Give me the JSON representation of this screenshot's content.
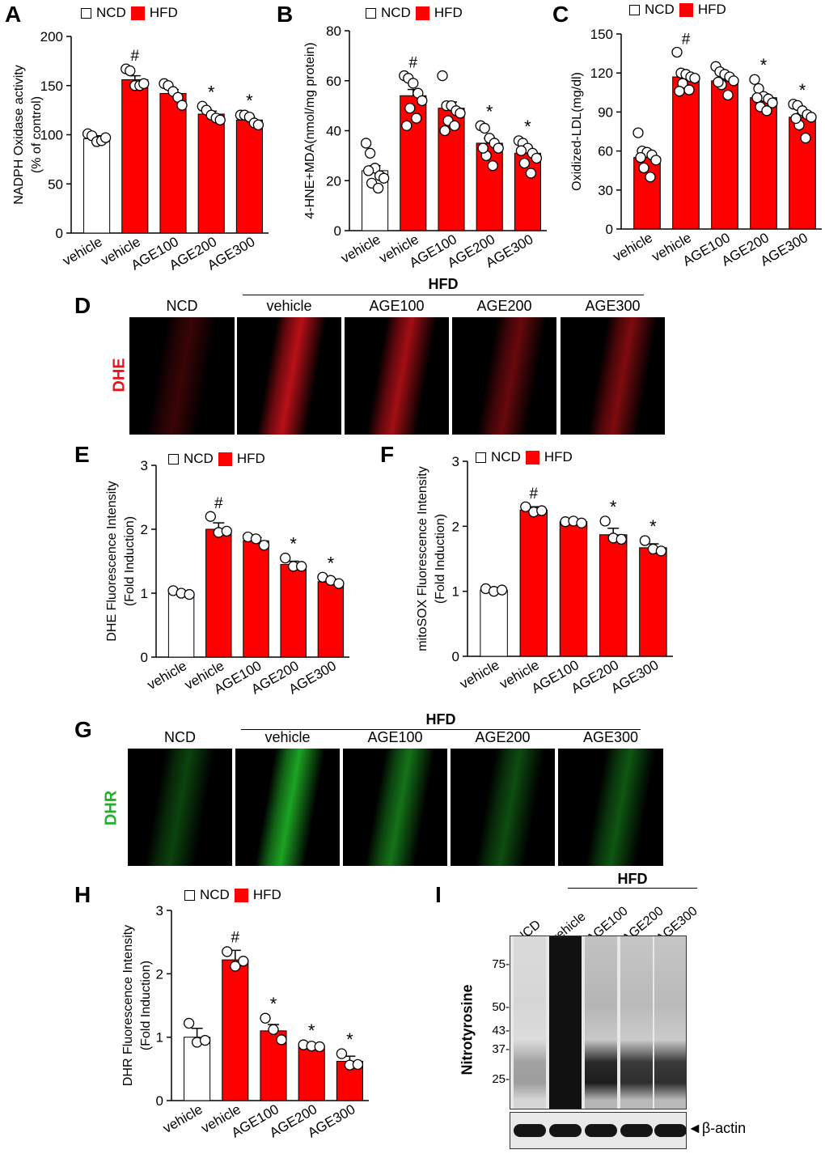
{
  "legend": {
    "ncd": "NCD",
    "hfd": "HFD"
  },
  "colors": {
    "ncd": "#ffffff",
    "hfd": "#ff0000",
    "dhe": "#e8141e",
    "dhr": "#22c02a"
  },
  "panels": {
    "A": "A",
    "B": "B",
    "C": "C",
    "D": "D",
    "E": "E",
    "F": "F",
    "G": "G",
    "H": "H",
    "I": "I"
  },
  "chart_data": [
    {
      "id": "A",
      "type": "bar",
      "ylabel": [
        "NADPH Oxidase activity",
        "(% of control)"
      ],
      "ylim": [
        0,
        200
      ],
      "yticks": [
        0,
        50,
        100,
        150,
        200
      ],
      "categories": [
        "vehicle",
        "vehicle",
        "AGE100",
        "AGE200",
        "AGE300"
      ],
      "groups": [
        "NCD",
        "HFD",
        "HFD",
        "HFD",
        "HFD"
      ],
      "values": [
        96,
        156,
        142,
        121,
        115
      ],
      "sem": [
        3,
        4,
        4,
        3,
        3
      ],
      "significance": [
        "",
        "#",
        "",
        "*",
        "*"
      ],
      "points": [
        [
          101,
          99,
          93,
          94,
          97
        ],
        [
          167,
          165,
          150,
          150,
          152
        ],
        [
          152,
          150,
          144,
          138,
          130
        ],
        [
          129,
          125,
          120,
          117,
          115
        ],
        [
          120,
          120,
          118,
          112,
          110
        ]
      ]
    },
    {
      "id": "B",
      "type": "bar",
      "ylabel": [
        "4-HNE+MDA(nmol/mg protein)"
      ],
      "ylim": [
        0,
        80
      ],
      "yticks": [
        0,
        20,
        40,
        60,
        80
      ],
      "categories": [
        "vehicle",
        "vehicle",
        "AGE100",
        "AGE200",
        "AGE300"
      ],
      "groups": [
        "NCD",
        "HFD",
        "HFD",
        "HFD",
        "HFD"
      ],
      "values": [
        24,
        54,
        49,
        35,
        31
      ],
      "sem": [
        2,
        2.5,
        2.5,
        2,
        2
      ],
      "significance": [
        "",
        "#",
        "",
        "*",
        "*"
      ],
      "points": [
        [
          35,
          31,
          25,
          22,
          21,
          19,
          17,
          24
        ],
        [
          62,
          61,
          59,
          55,
          52,
          49,
          45,
          42
        ],
        [
          62,
          50,
          50,
          48,
          47,
          44,
          42,
          40
        ],
        [
          42,
          41,
          37,
          35,
          33,
          30,
          26,
          33
        ],
        [
          36,
          35,
          33,
          31,
          29,
          27,
          23,
          32
        ]
      ]
    },
    {
      "id": "C",
      "type": "bar",
      "ylabel": [
        "Oxidized-LDL(mg/dl)"
      ],
      "ylim": [
        0,
        150
      ],
      "yticks": [
        0,
        30,
        60,
        90,
        120,
        150
      ],
      "categories": [
        "vehicle",
        "vehicle",
        "AGE100",
        "AGE200",
        "AGE300"
      ],
      "groups": [
        "HFD",
        "HFD",
        "HFD",
        "HFD",
        "HFD"
      ],
      "values": [
        55,
        117,
        114,
        101,
        86
      ],
      "sem": [
        4,
        3,
        3,
        3,
        3
      ],
      "significance": [
        "",
        "#",
        "",
        "*",
        "*"
      ],
      "points": [
        [
          74,
          60,
          59,
          57,
          53,
          47,
          40,
          55
        ],
        [
          136,
          120,
          119,
          117,
          116,
          112,
          107,
          106
        ],
        [
          125,
          121,
          119,
          117,
          114,
          111,
          103,
          113
        ],
        [
          115,
          108,
          102,
          100,
          97,
          94,
          91,
          101
        ],
        [
          96,
          95,
          91,
          88,
          86,
          80,
          70,
          85
        ]
      ]
    },
    {
      "id": "E",
      "type": "bar",
      "ylabel": [
        "DHE Fluorescence Intensity",
        "(Fold Induction)"
      ],
      "ylim": [
        0,
        3
      ],
      "yticks": [
        0,
        1,
        2,
        3
      ],
      "categories": [
        "vehicle",
        "vehicle",
        "AGE100",
        "AGE200",
        "AGE300"
      ],
      "groups": [
        "NCD",
        "HFD",
        "HFD",
        "HFD",
        "HFD"
      ],
      "values": [
        1.0,
        2.0,
        1.82,
        1.45,
        1.18
      ],
      "sem": [
        0.03,
        0.1,
        0.05,
        0.05,
        0.04
      ],
      "significance": [
        "",
        "#",
        "",
        "*",
        "*"
      ],
      "points": [
        [
          1.04,
          1.0,
          0.98
        ],
        [
          2.2,
          1.95,
          1.97
        ],
        [
          1.88,
          1.85,
          1.75
        ],
        [
          1.55,
          1.42,
          1.42
        ],
        [
          1.25,
          1.2,
          1.15
        ]
      ]
    },
    {
      "id": "F",
      "type": "bar",
      "ylabel": [
        "mitoSOX Fluorescence Intensity",
        "(Fold Induction)"
      ],
      "ylim": [
        0,
        3
      ],
      "yticks": [
        0,
        1,
        2,
        3
      ],
      "categories": [
        "vehicle",
        "vehicle",
        "AGE100",
        "AGE200",
        "AGE300"
      ],
      "groups": [
        "NCD",
        "HFD",
        "HFD",
        "HFD",
        "HFD"
      ],
      "values": [
        1.02,
        2.25,
        2.07,
        1.87,
        1.67
      ],
      "sem": [
        0.03,
        0.05,
        0.03,
        0.1,
        0.06
      ],
      "significance": [
        "",
        "#",
        "",
        "*",
        "*"
      ],
      "points": [
        [
          1.04,
          1.0,
          1.02
        ],
        [
          2.3,
          2.22,
          2.24
        ],
        [
          2.07,
          2.08,
          2.05
        ],
        [
          2.08,
          1.82,
          1.8
        ],
        [
          1.78,
          1.65,
          1.62
        ]
      ]
    },
    {
      "id": "H",
      "type": "bar",
      "ylabel": [
        "DHR Fluorescence Intensity",
        "(Fold Induction)"
      ],
      "ylim": [
        0,
        3
      ],
      "yticks": [
        0,
        1,
        2,
        3
      ],
      "categories": [
        "vehicle",
        "vehicle",
        "AGE100",
        "AGE200",
        "AGE300"
      ],
      "groups": [
        "NCD",
        "HFD",
        "HFD",
        "HFD",
        "HFD"
      ],
      "values": [
        1.0,
        2.22,
        1.1,
        0.86,
        0.62
      ],
      "sem": [
        0.14,
        0.15,
        0.1,
        0.02,
        0.08
      ],
      "significance": [
        "",
        "#",
        "*",
        "*",
        "*"
      ],
      "points": [
        [
          1.22,
          0.92,
          0.95
        ],
        [
          2.35,
          2.12,
          2.2
        ],
        [
          1.3,
          1.12,
          0.96
        ],
        [
          0.88,
          0.86,
          0.85
        ],
        [
          0.74,
          0.56,
          0.57
        ]
      ]
    }
  ],
  "microscopy_D": {
    "stain": "DHE",
    "group_header": "HFD",
    "columns": [
      "NCD",
      "vehicle",
      "AGE100",
      "AGE200",
      "AGE300"
    ],
    "intensity": [
      0.25,
      0.8,
      0.7,
      0.45,
      0.55
    ]
  },
  "microscopy_G": {
    "stain": "DHR",
    "group_header": "HFD",
    "columns": [
      "NCD",
      "vehicle",
      "AGE100",
      "AGE200",
      "AGE300"
    ],
    "intensity": [
      0.35,
      0.85,
      0.6,
      0.4,
      0.45
    ]
  },
  "western_I": {
    "group_header": "HFD",
    "lanes": [
      "NCD",
      "vehicle",
      "AGE100",
      "AGE200",
      "AGE300"
    ],
    "markers": [
      "75-",
      "50-",
      "43-",
      "37-",
      "25-"
    ],
    "antibody": "Nitrotyrosine",
    "loading_control": "◄β-actin"
  }
}
